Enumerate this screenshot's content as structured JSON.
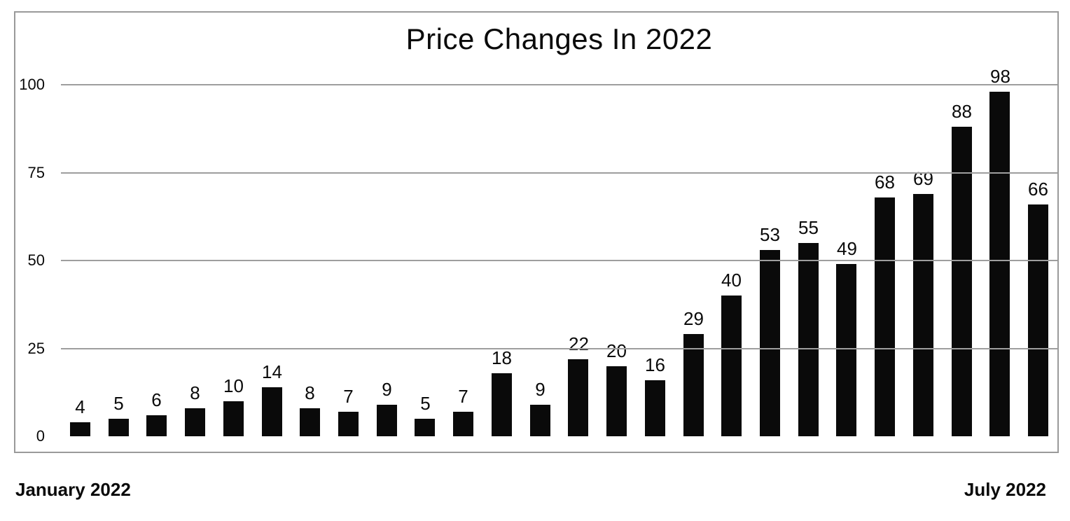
{
  "chart_data": {
    "type": "bar",
    "title": "Price Changes In 2022",
    "values": [
      4,
      5,
      6,
      8,
      10,
      14,
      8,
      7,
      9,
      5,
      7,
      18,
      9,
      22,
      20,
      16,
      29,
      40,
      53,
      55,
      49,
      68,
      69,
      88,
      98,
      66
    ],
    "bar_value_labels": [
      "4",
      "5",
      "6",
      "8",
      "10",
      "14",
      "8",
      "7",
      "9",
      "5",
      "7",
      "18",
      "9",
      "22",
      "20",
      "16",
      "29",
      "40",
      "53",
      "55",
      "49",
      "68",
      "69",
      "88",
      "98",
      "66"
    ],
    "x_axis": {
      "start_label": "January 2022",
      "end_label": "July 2022"
    },
    "yticks": [
      0,
      25,
      50,
      75,
      100
    ],
    "ytick_labels": [
      "0",
      "25",
      "50",
      "75",
      "100"
    ],
    "ylim": [
      0,
      100
    ],
    "grid": true,
    "legend_position": "none",
    "colors": {
      "bar": "#0a0a0a",
      "gridline": "#9e9e9e",
      "frame_border": "#9a9a9a",
      "text": "#0a0a0a",
      "background": "#ffffff"
    }
  }
}
